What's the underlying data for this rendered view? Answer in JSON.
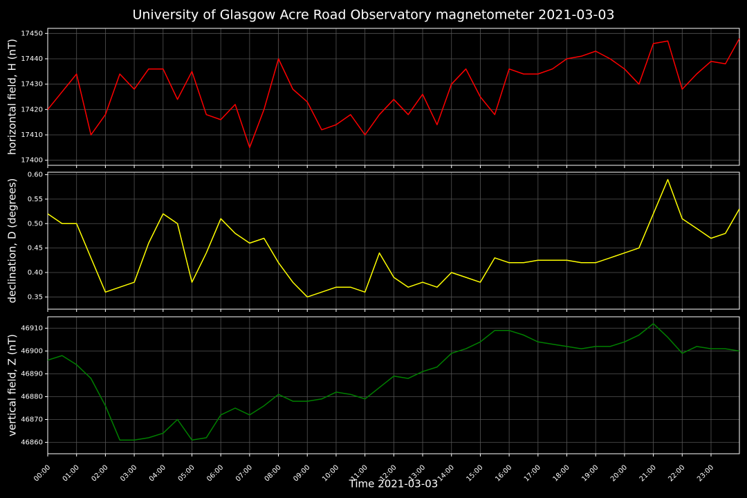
{
  "title": "University of Glasgow Acre Road Observatory magnetometer 2021-03-03",
  "chart_data": [
    {
      "type": "line",
      "ylabel": "horizontal field, H (nT)",
      "x": [
        "00:00",
        "00:30",
        "01:00",
        "01:30",
        "02:00",
        "02:30",
        "03:00",
        "03:30",
        "04:00",
        "04:30",
        "05:00",
        "05:30",
        "06:00",
        "06:30",
        "07:00",
        "07:30",
        "08:00",
        "08:30",
        "09:00",
        "09:30",
        "10:00",
        "10:30",
        "11:00",
        "11:30",
        "12:00",
        "12:30",
        "13:00",
        "13:30",
        "14:00",
        "14:30",
        "15:00",
        "15:30",
        "16:00",
        "16:30",
        "17:00",
        "17:30",
        "18:00",
        "18:30",
        "19:00",
        "19:30",
        "20:00",
        "20:30",
        "21:00",
        "21:30",
        "22:00",
        "22:30",
        "23:00",
        "23:30",
        "23:59"
      ],
      "series": [
        {
          "color": "#ff0000",
          "values": [
            17420,
            17427,
            17434,
            17410,
            17418,
            17434,
            17428,
            17436,
            17436,
            17424,
            17435,
            17418,
            17416,
            17422,
            17405,
            17420,
            17440,
            17428,
            17423,
            17412,
            17414,
            17418,
            17410,
            17418,
            17424,
            17418,
            17426,
            17414,
            17430,
            17436,
            17425,
            17418,
            17436,
            17434,
            17434,
            17436,
            17440,
            17441,
            17443,
            17440,
            17436,
            17430,
            17446,
            17447,
            17428,
            17434,
            17439,
            17438,
            17448
          ]
        }
      ],
      "ylim": [
        17398,
        17452
      ],
      "yticks": [
        17400,
        17410,
        17420,
        17430,
        17440,
        17450
      ],
      "grid": true
    },
    {
      "type": "line",
      "ylabel": "declination, D (degrees)",
      "x": [
        "00:00",
        "00:30",
        "01:00",
        "01:30",
        "02:00",
        "02:30",
        "03:00",
        "03:30",
        "04:00",
        "04:30",
        "05:00",
        "05:30",
        "06:00",
        "06:30",
        "07:00",
        "07:30",
        "08:00",
        "08:30",
        "09:00",
        "09:30",
        "10:00",
        "10:30",
        "11:00",
        "11:30",
        "12:00",
        "12:30",
        "13:00",
        "13:30",
        "14:00",
        "14:30",
        "15:00",
        "15:30",
        "16:00",
        "16:30",
        "17:00",
        "17:30",
        "18:00",
        "18:30",
        "19:00",
        "19:30",
        "20:00",
        "20:30",
        "21:00",
        "21:30",
        "22:00",
        "22:30",
        "23:00",
        "23:30",
        "23:59"
      ],
      "series": [
        {
          "color": "#ffff00",
          "values": [
            0.52,
            0.5,
            0.5,
            0.43,
            0.36,
            0.37,
            0.38,
            0.46,
            0.52,
            0.5,
            0.38,
            0.44,
            0.51,
            0.48,
            0.46,
            0.47,
            0.42,
            0.38,
            0.35,
            0.36,
            0.37,
            0.37,
            0.36,
            0.44,
            0.39,
            0.37,
            0.38,
            0.37,
            0.4,
            0.39,
            0.38,
            0.43,
            0.42,
            0.42,
            0.425,
            0.425,
            0.425,
            0.42,
            0.42,
            0.43,
            0.44,
            0.45,
            0.52,
            0.59,
            0.51,
            0.49,
            0.47,
            0.48,
            0.53
          ]
        }
      ],
      "ylim": [
        0.325,
        0.605
      ],
      "yticks": [
        0.35,
        {
          "value": 0.4,
          "label": "0.40"
        },
        0.45,
        {
          "value": 0.5,
          "label": "0.50"
        },
        0.55,
        {
          "value": 0.6,
          "label": "0.60"
        }
      ],
      "grid": true
    },
    {
      "type": "line",
      "ylabel": "vertical field, Z (nT)",
      "xlabel": "Time 2021-03-03",
      "x": [
        "00:00",
        "00:30",
        "01:00",
        "01:30",
        "02:00",
        "02:30",
        "03:00",
        "03:30",
        "04:00",
        "04:30",
        "05:00",
        "05:30",
        "06:00",
        "06:30",
        "07:00",
        "07:30",
        "08:00",
        "08:30",
        "09:00",
        "09:30",
        "10:00",
        "10:30",
        "11:00",
        "11:30",
        "12:00",
        "12:30",
        "13:00",
        "13:30",
        "14:00",
        "14:30",
        "15:00",
        "15:30",
        "16:00",
        "16:30",
        "17:00",
        "17:30",
        "18:00",
        "18:30",
        "19:00",
        "19:30",
        "20:00",
        "20:30",
        "21:00",
        "21:30",
        "22:00",
        "22:30",
        "23:00",
        "23:30",
        "23:59"
      ],
      "series": [
        {
          "color": "#008000",
          "values": [
            46896,
            46898,
            46894,
            46888,
            46876,
            46861,
            46861,
            46862,
            46864,
            46870,
            46861,
            46862,
            46872,
            46875,
            46872,
            46876,
            46881,
            46878,
            46878,
            46879,
            46882,
            46881,
            46879,
            46884,
            46889,
            46888,
            46891,
            46893,
            46899,
            46901,
            46904,
            46909,
            46909,
            46907,
            46904,
            46903,
            46902,
            46901,
            46902,
            46902,
            46904,
            46907,
            46912,
            46906,
            46899,
            46902,
            46901,
            46901,
            46900
          ]
        }
      ],
      "ylim": [
        46855,
        46915
      ],
      "yticks": [
        46860,
        46870,
        46880,
        46890,
        46900,
        46910
      ],
      "grid": true,
      "xlim": [
        "00:00",
        "23:59"
      ],
      "xticks": [
        "00:00",
        "01:00",
        "02:00",
        "03:00",
        "04:00",
        "05:00",
        "06:00",
        "07:00",
        "08:00",
        "09:00",
        "10:00",
        "11:00",
        "12:00",
        "13:00",
        "14:00",
        "15:00",
        "16:00",
        "17:00",
        "18:00",
        "19:00",
        "20:00",
        "21:00",
        "22:00",
        "23:00"
      ]
    }
  ]
}
